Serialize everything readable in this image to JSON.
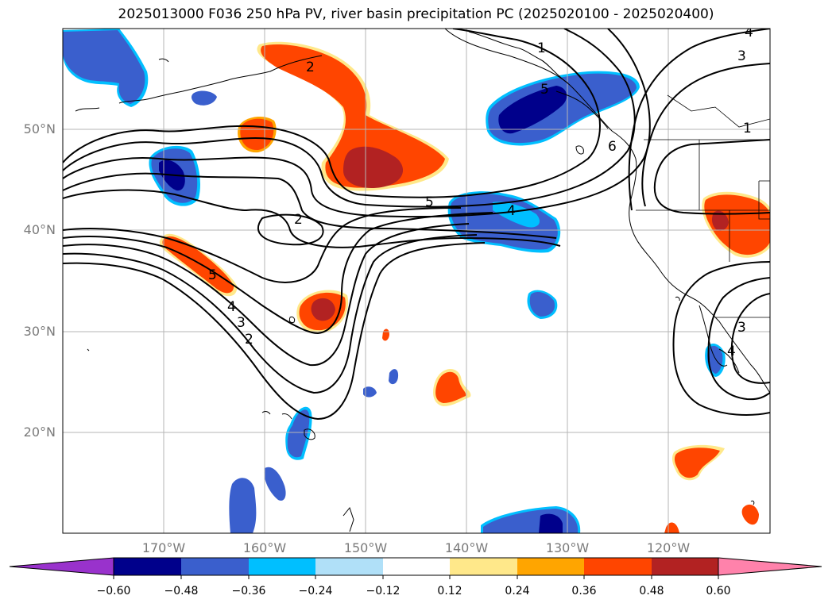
{
  "title": "2025013000 F036 250 hPa PV, river basin precipitation PC (2025020100 - 2025020400)",
  "lat_labels": [
    "50°N",
    "40°N",
    "30°N",
    "20°N"
  ],
  "lon_labels": [
    "170°W",
    "160°W",
    "150°W",
    "140°W",
    "130°W",
    "120°W"
  ],
  "contour_labels": [
    "1",
    "2",
    "2",
    "3",
    "4",
    "5",
    "6",
    "5",
    "4",
    "3",
    "2",
    "1",
    "3",
    "4",
    "5",
    "4"
  ],
  "colorbar": {
    "ticks": [
      "−0.60",
      "−0.48",
      "−0.36",
      "−0.24",
      "−0.12",
      "0.12",
      "0.24",
      "0.36",
      "0.48",
      "0.60"
    ],
    "colors": [
      "#9932cc",
      "#00008b",
      "#3a5fcd",
      "#00bfff",
      "#b0e0f8",
      "#ffffff",
      "#ffe88a",
      "#ffa500",
      "#ff4500",
      "#b22222",
      "#ff82ab"
    ]
  },
  "palette": {
    "dark_blue": "#00008b",
    "mid_blue": "#3a5fcd",
    "light_blue": "#00bfff",
    "pale_blue": "#b0e0f8",
    "yellow": "#ffe88a",
    "orange": "#ffa500",
    "red_orange": "#ff4500",
    "dark_red": "#b22222"
  }
}
